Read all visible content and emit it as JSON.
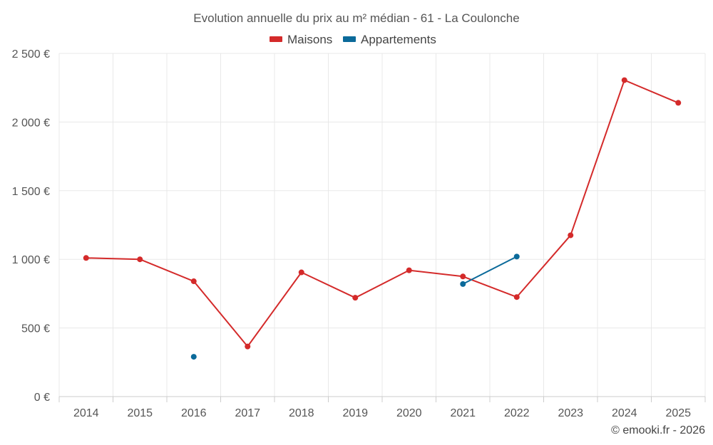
{
  "chart_data": {
    "type": "line",
    "title": "Evolution annuelle du prix au m² médian - 61 - La Coulonche",
    "categories": [
      "2014",
      "2015",
      "2016",
      "2017",
      "2018",
      "2019",
      "2020",
      "2021",
      "2022",
      "2023",
      "2024",
      "2025"
    ],
    "series": [
      {
        "name": "Maisons",
        "color": "#d42a2a",
        "values": [
          1010,
          1000,
          840,
          365,
          905,
          720,
          920,
          875,
          725,
          1175,
          2305,
          2140
        ]
      },
      {
        "name": "Appartements",
        "color": "#0b6a9a",
        "values": [
          null,
          null,
          290,
          null,
          null,
          null,
          null,
          820,
          1020,
          null,
          null,
          null
        ]
      }
    ],
    "ylim": [
      0,
      2500
    ],
    "yticks": [
      0,
      500,
      1000,
      1500,
      2000,
      2500
    ],
    "ytick_labels": [
      "0 €",
      "500 €",
      "1 000 €",
      "1 500 €",
      "2 000 €",
      "2 500 €"
    ],
    "xlabel": "",
    "ylabel": "",
    "legend_position": "top-center",
    "grid": true
  },
  "credit": "© emooki.fr - 2026"
}
